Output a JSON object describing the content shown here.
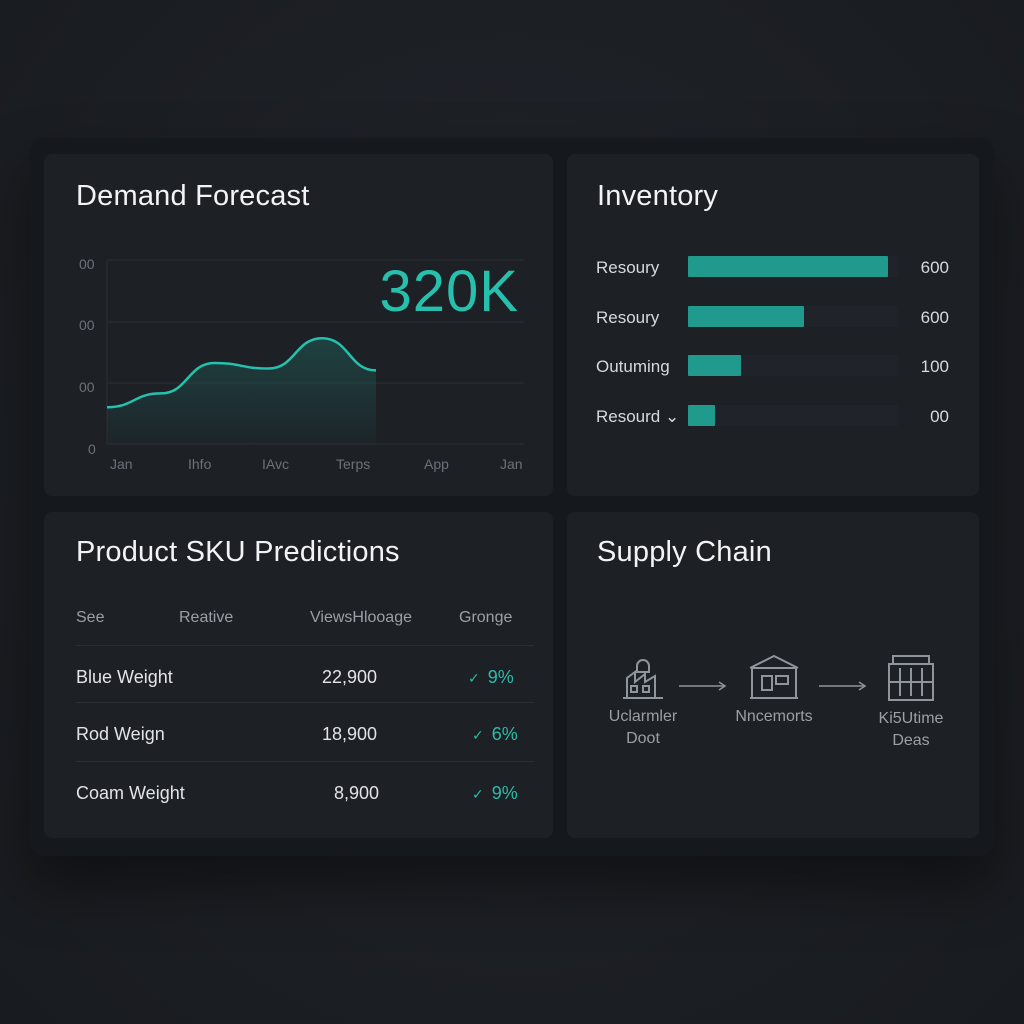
{
  "demand": {
    "title": "Demand Forecast",
    "big_value": "320K",
    "chart_data": {
      "type": "area",
      "y_tick_labels": [
        "00",
        "00",
        "00",
        "0"
      ],
      "x_tick_labels": [
        "Jan",
        "Ihfo",
        "IAvc",
        "Terps",
        "App",
        "Jan"
      ],
      "series": [
        {
          "values": [
            40,
            55,
            88,
            82,
            115,
            80
          ]
        }
      ],
      "ylim": [
        0,
        200
      ],
      "grid": true
    }
  },
  "inventory": {
    "title": "Inventory",
    "rows": [
      {
        "label": "Resoury",
        "value": "600",
        "fill": 0.95
      },
      {
        "label": "Resoury",
        "value": "600",
        "fill": 0.55
      },
      {
        "label": "Outuming",
        "value": "100",
        "fill": 0.25
      },
      {
        "label": "Resourd ⌄",
        "value": "00",
        "fill": 0.13
      }
    ]
  },
  "sku": {
    "title": "Product SKU Predictions",
    "headers": [
      "See",
      "Reative",
      "ViewsHlooage",
      "Gronge"
    ],
    "rows": [
      {
        "name": "Blue Weight",
        "value": "22,900",
        "change": "9%"
      },
      {
        "name": "Rod Weign",
        "value": "18,900",
        "change": "6%"
      },
      {
        "name": "Coam Weight",
        "value": "8,900",
        "change": "9%"
      }
    ]
  },
  "supply": {
    "title": "Supply Chain",
    "nodes": [
      {
        "label_line1": "Uclarmler",
        "label_line2": "Doot",
        "icon": "factory-icon"
      },
      {
        "label_line1": "Nncemorts",
        "label_line2": "",
        "icon": "warehouse-icon"
      },
      {
        "label_line1": "Ki5Utime",
        "label_line2": "Deas",
        "icon": "store-icon"
      }
    ]
  },
  "colors": {
    "accent": "#26c0ad",
    "bar": "#1f9a8c",
    "card": "#1d2025",
    "frame": "#15181c"
  }
}
